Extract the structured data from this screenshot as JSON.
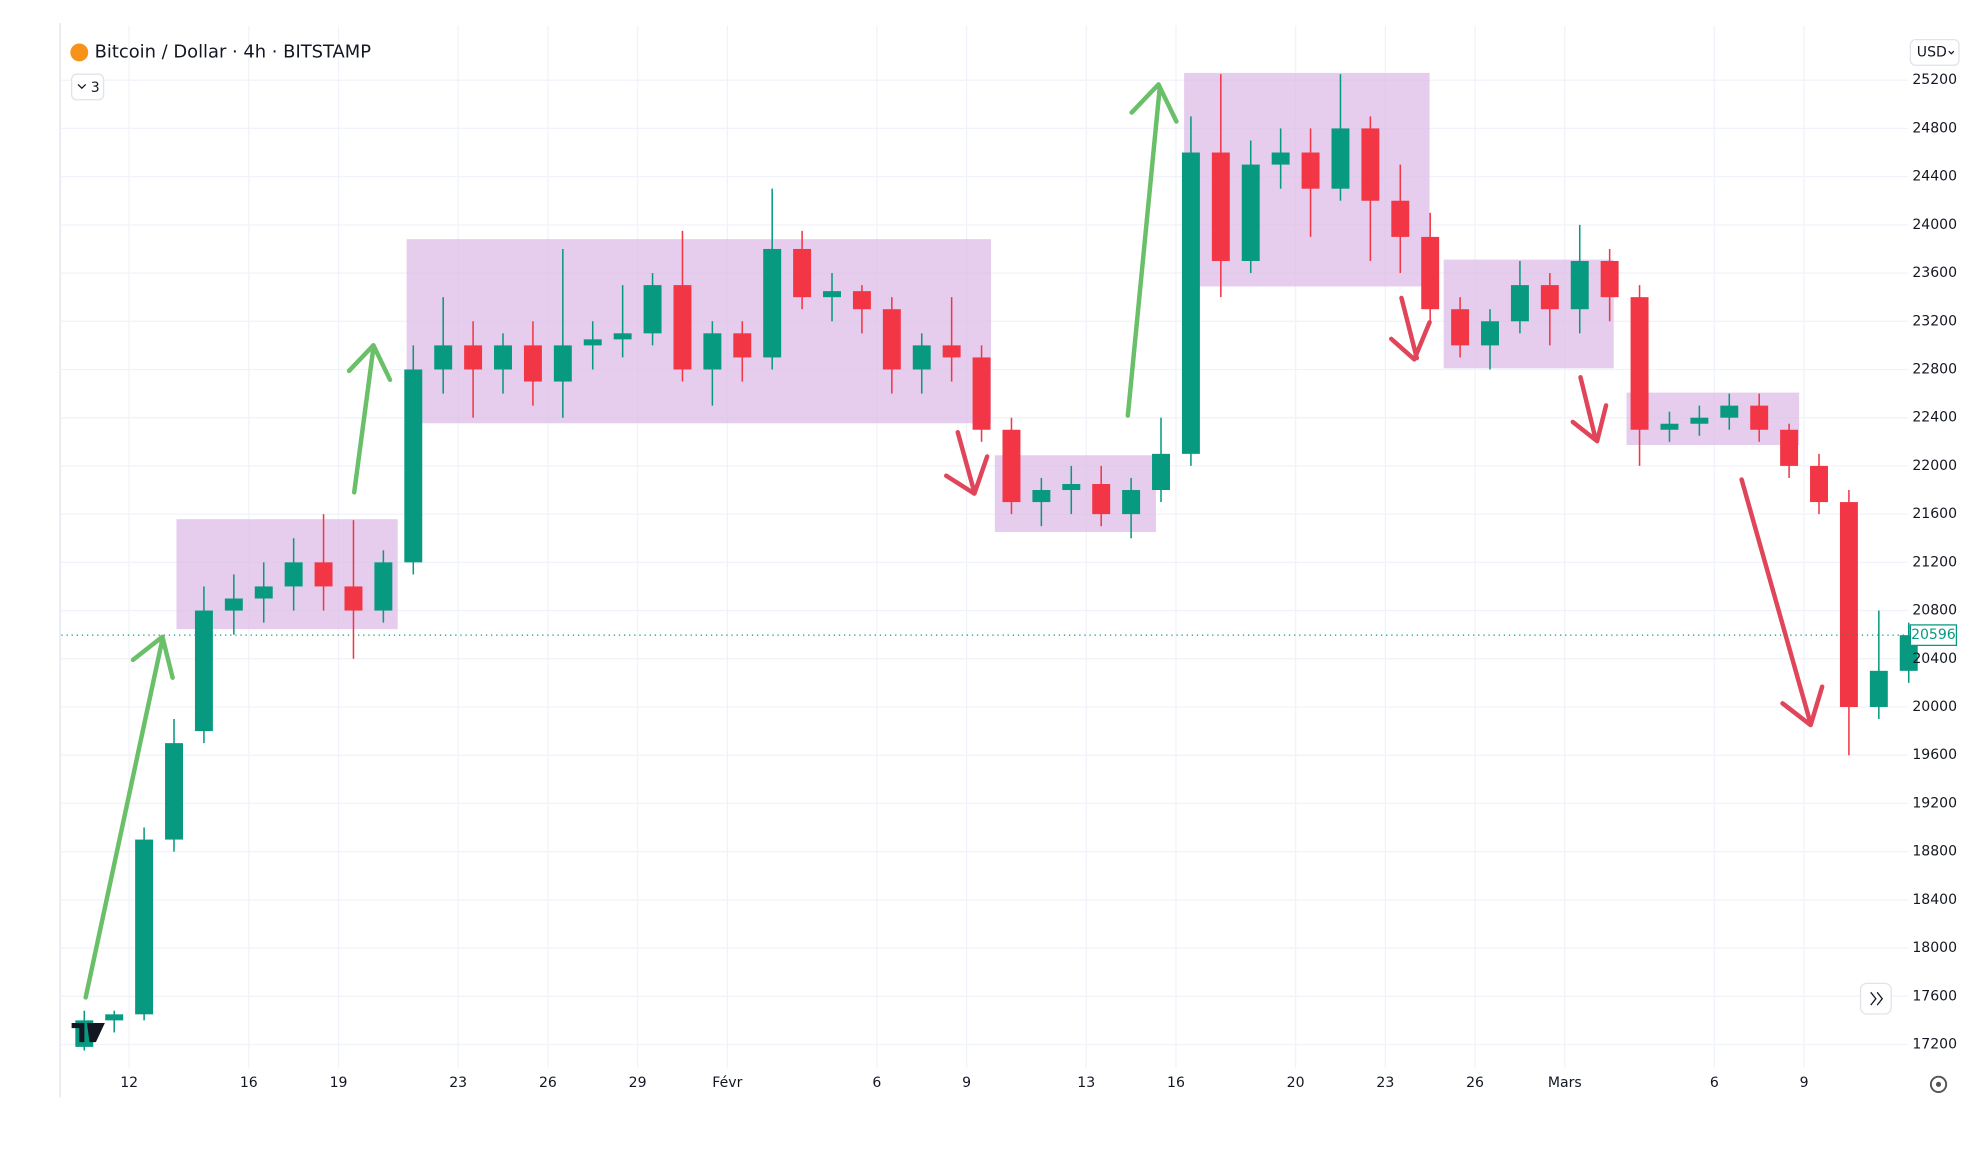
{
  "chart_data": {
    "type": "candlestick",
    "title": "Bitcoin / Dollar · 4h · BITSTAMP",
    "toolbar": {
      "indicators": "3",
      "currency": "USD"
    },
    "categories": [
      null,
      null,
      "12",
      null,
      null,
      null,
      "16",
      null,
      null,
      "19",
      null,
      null,
      null,
      "23",
      null,
      null,
      "26",
      null,
      null,
      "29",
      null,
      null,
      "Févr",
      null,
      null,
      null,
      null,
      "6",
      null,
      null,
      "9",
      null,
      null,
      null,
      "13",
      null,
      null,
      "16",
      null,
      null,
      null,
      "20",
      null,
      null,
      "23",
      null,
      null,
      "26",
      null,
      null,
      "Mars",
      null,
      null,
      null,
      null,
      "6",
      null,
      null,
      "9",
      null,
      null,
      null
    ],
    "open": [
      17180,
      17400,
      17450,
      18900,
      19800,
      20800,
      20900,
      21000,
      21200,
      21000,
      20800,
      21200,
      22800,
      23000,
      22800,
      23000,
      22700,
      23000,
      23050,
      23100,
      23500,
      22800,
      23100,
      22900,
      23800,
      23400,
      23450,
      23300,
      22800,
      23000,
      22900,
      22300,
      21700,
      21800,
      21850,
      21600,
      21800,
      22100,
      24600,
      23700,
      24500,
      24600,
      24300,
      24800,
      24200,
      23900,
      23300,
      23000,
      23200,
      23500,
      23300,
      23700,
      23400,
      22300,
      22350,
      22400,
      22500,
      22300,
      22000,
      21700,
      20000,
      20300
    ],
    "high": [
      17480,
      17480,
      19000,
      19900,
      21000,
      21100,
      21200,
      21400,
      21600,
      21550,
      21300,
      23000,
      23400,
      23200,
      23100,
      23200,
      23800,
      23200,
      23500,
      23600,
      23950,
      23200,
      23200,
      24300,
      23950,
      23600,
      23500,
      23400,
      23100,
      23400,
      23000,
      22400,
      21900,
      22000,
      22000,
      21900,
      22400,
      24900,
      25250,
      24700,
      24800,
      24800,
      25250,
      24900,
      24500,
      24100,
      23400,
      23300,
      23700,
      23600,
      24000,
      23800,
      23500,
      22450,
      22500,
      22600,
      22600,
      22350,
      22100,
      21800,
      20800,
      20700
    ],
    "low": [
      17150,
      17300,
      17400,
      18800,
      19700,
      20600,
      20700,
      20800,
      20800,
      20400,
      20700,
      21100,
      22600,
      22400,
      22600,
      22500,
      22400,
      22800,
      22900,
      23000,
      22700,
      22500,
      22700,
      22800,
      23300,
      23200,
      23100,
      22600,
      22600,
      22700,
      22200,
      21600,
      21500,
      21600,
      21500,
      21400,
      21700,
      22000,
      23400,
      23600,
      24300,
      23900,
      24200,
      23700,
      23600,
      23200,
      22900,
      22800,
      23100,
      23000,
      23100,
      23200,
      22000,
      22200,
      22250,
      22300,
      22200,
      21900,
      21600,
      19600,
      19900,
      20200
    ],
    "close": [
      17400,
      17450,
      18900,
      19700,
      20800,
      20900,
      21000,
      21200,
      21000,
      20800,
      21200,
      22800,
      23000,
      22800,
      23000,
      22700,
      23000,
      23050,
      23100,
      23500,
      22800,
      23100,
      22900,
      23800,
      23400,
      23450,
      23300,
      22800,
      23000,
      22900,
      22300,
      21700,
      21800,
      21850,
      21600,
      21800,
      22100,
      24600,
      23700,
      24500,
      24600,
      24300,
      24800,
      24200,
      23900,
      23300,
      23000,
      23200,
      23500,
      23300,
      23700,
      23400,
      22300,
      22350,
      22400,
      22500,
      22300,
      22000,
      21700,
      20000,
      20300,
      20596
    ],
    "up_color": "#089981",
    "down_color": "#f23645",
    "last_price": 20596,
    "ylim": [
      17060,
      25600
    ],
    "yticks": [
      17200,
      17600,
      18000,
      18400,
      18800,
      19200,
      19600,
      20000,
      20400,
      20800,
      21200,
      21600,
      22000,
      22400,
      22800,
      23200,
      23600,
      24000,
      24400,
      24800,
      25200
    ],
    "grid": true
  }
}
